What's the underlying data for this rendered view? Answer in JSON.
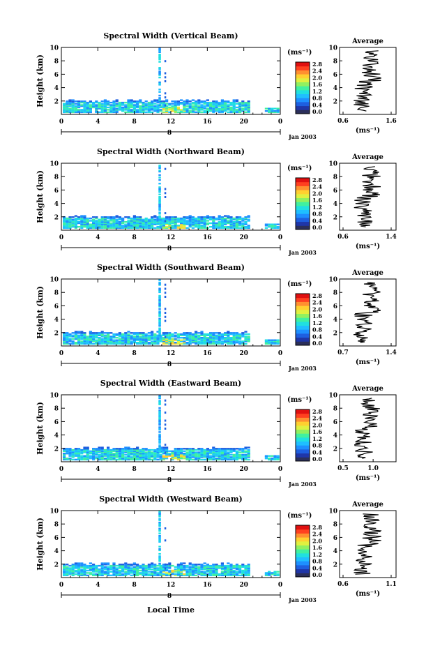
{
  "figure": {
    "xlabel": "Local Time",
    "avg_title": "Average",
    "unit_label": "(ms⁻¹)",
    "date_label": "Jan 2003",
    "day_label": "8"
  },
  "colors": {
    "scale": [
      "#2b2f5a",
      "#1f36a8",
      "#1e5fe0",
      "#1e90ff",
      "#1fbfff",
      "#20e0e0",
      "#40f0a0",
      "#90f060",
      "#e0f040",
      "#ffd030",
      "#ff9030",
      "#ff4020",
      "#e01010"
    ]
  },
  "chart_data": [
    {
      "type": "heatmap",
      "title": "Spectral Width (Vertical Beam)",
      "ylabel": "Height (km)",
      "x_ticks": [
        "0",
        "4",
        "8",
        "12",
        "16",
        "20",
        "0"
      ],
      "xlim": [
        0,
        24
      ],
      "y_ticks": [
        "2",
        "4",
        "6",
        "8",
        "10"
      ],
      "ylim": [
        0,
        10
      ],
      "colorbar_ticks": [
        "0.0",
        "0.4",
        "0.8",
        "1.2",
        "1.6",
        "2.0",
        "2.4",
        "2.8"
      ],
      "average": {
        "x_ticks": [
          "0.6",
          "1.6"
        ],
        "xlim": [
          0.6,
          1.6
        ],
        "ylim": [
          0,
          10
        ],
        "y_ticks": [
          "2",
          "4",
          "6",
          "8",
          "10"
        ]
      }
    },
    {
      "type": "heatmap",
      "title": "Spectral Width (Northward Beam)",
      "ylabel": "Height (km)",
      "x_ticks": [
        "0",
        "4",
        "8",
        "12",
        "16",
        "20",
        "0"
      ],
      "xlim": [
        0,
        24
      ],
      "y_ticks": [
        "2",
        "4",
        "6",
        "8",
        "10"
      ],
      "ylim": [
        0,
        10
      ],
      "colorbar_ticks": [
        "0.0",
        "0.4",
        "0.8",
        "1.2",
        "1.6",
        "2.0",
        "2.4",
        "2.8"
      ],
      "average": {
        "x_ticks": [
          "0.6",
          "1.4"
        ],
        "xlim": [
          0.6,
          1.4
        ],
        "ylim": [
          0,
          10
        ],
        "y_ticks": [
          "2",
          "4",
          "6",
          "8",
          "10"
        ]
      }
    },
    {
      "type": "heatmap",
      "title": "Spectral Width (Southward Beam)",
      "ylabel": "Height (km)",
      "x_ticks": [
        "0",
        "4",
        "8",
        "12",
        "16",
        "20",
        "0"
      ],
      "xlim": [
        0,
        24
      ],
      "y_ticks": [
        "2",
        "4",
        "6",
        "8",
        "10"
      ],
      "ylim": [
        0,
        10
      ],
      "colorbar_ticks": [
        "0.0",
        "0.4",
        "0.8",
        "1.2",
        "1.6",
        "2.0",
        "2.4",
        "2.8"
      ],
      "average": {
        "x_ticks": [
          "0.7",
          "1.4"
        ],
        "xlim": [
          0.7,
          1.4
        ],
        "ylim": [
          0,
          10
        ],
        "y_ticks": [
          "2",
          "4",
          "6",
          "8",
          "10"
        ]
      }
    },
    {
      "type": "heatmap",
      "title": "Spectral Width (Eastward Beam)",
      "ylabel": "Height (km)",
      "x_ticks": [
        "0",
        "4",
        "8",
        "12",
        "16",
        "20",
        "0"
      ],
      "xlim": [
        0,
        24
      ],
      "y_ticks": [
        "2",
        "4",
        "6",
        "8",
        "10"
      ],
      "ylim": [
        0,
        10
      ],
      "colorbar_ticks": [
        "0.0",
        "0.4",
        "0.8",
        "1.2",
        "1.6",
        "2.0",
        "2.4",
        "2.8"
      ],
      "average": {
        "x_ticks": [
          "0.5",
          "1.0"
        ],
        "xlim": [
          0.5,
          1.3
        ],
        "ylim": [
          0,
          10
        ],
        "y_ticks": [
          "2",
          "4",
          "6",
          "8",
          "10"
        ]
      }
    },
    {
      "type": "heatmap",
      "title": "Spectral Width (Westward Beam)",
      "ylabel": "Height (km)",
      "x_ticks": [
        "0",
        "4",
        "8",
        "12",
        "16",
        "20",
        "0"
      ],
      "xlim": [
        0,
        24
      ],
      "y_ticks": [
        "2",
        "4",
        "6",
        "8",
        "10"
      ],
      "ylim": [
        0,
        10
      ],
      "colorbar_ticks": [
        "0.0",
        "0.4",
        "0.8",
        "1.2",
        "1.6",
        "2.0",
        "2.4",
        "2.8"
      ],
      "average": {
        "x_ticks": [
          "0.6",
          "1.1"
        ],
        "xlim": [
          0.6,
          1.1
        ],
        "ylim": [
          0,
          10
        ],
        "y_ticks": [
          "2",
          "4",
          "6",
          "8",
          "10"
        ]
      }
    }
  ]
}
